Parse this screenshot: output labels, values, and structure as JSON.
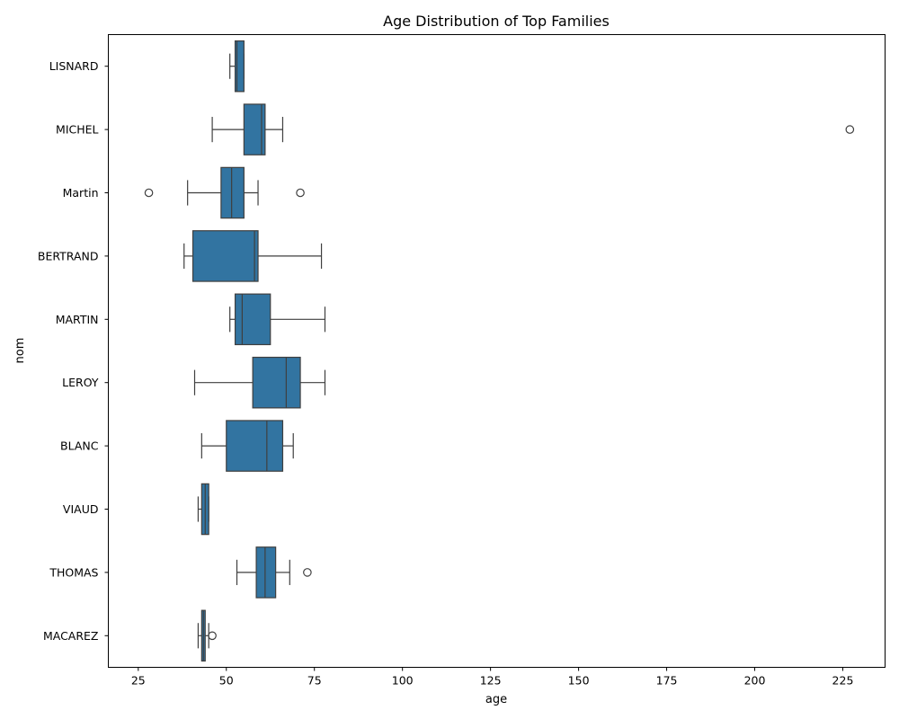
{
  "chart_data": {
    "type": "boxplot",
    "orientation": "horizontal",
    "title": "Age Distribution of Top Families",
    "xlabel": "age",
    "ylabel": "nom",
    "xlim": [
      16.5,
      237.0
    ],
    "xticks": [
      25,
      50,
      75,
      100,
      125,
      150,
      175,
      200,
      225
    ],
    "grid": false,
    "legend": "none",
    "colors": {
      "box_fill": "#3274a1",
      "line": "#3f3f3f",
      "axis": "#000000"
    },
    "categories": [
      "LISNARD",
      "MICHEL",
      "Martin",
      "BERTRAND",
      "MARTIN",
      "LEROY",
      "BLANC",
      "VIAUD",
      "THOMAS",
      "MACAREZ"
    ],
    "boxes": [
      {
        "label": "LISNARD",
        "whislo": 51,
        "q1": 52.5,
        "med": 53,
        "q3": 55,
        "whishi": 55,
        "fliers": []
      },
      {
        "label": "MICHEL",
        "whislo": 46,
        "q1": 55,
        "med": 60,
        "q3": 61,
        "whishi": 66,
        "fliers": [
          227
        ]
      },
      {
        "label": "Martin",
        "whislo": 39,
        "q1": 48.5,
        "med": 51.5,
        "q3": 55,
        "whishi": 59,
        "fliers": [
          28,
          71
        ]
      },
      {
        "label": "BERTRAND",
        "whislo": 38,
        "q1": 40.5,
        "med": 58,
        "q3": 59,
        "whishi": 77,
        "fliers": []
      },
      {
        "label": "MARTIN",
        "whislo": 51,
        "q1": 52.5,
        "med": 54.5,
        "q3": 62.5,
        "whishi": 78,
        "fliers": []
      },
      {
        "label": "LEROY",
        "whislo": 41,
        "q1": 57.5,
        "med": 67,
        "q3": 71,
        "whishi": 78,
        "fliers": []
      },
      {
        "label": "BLANC",
        "whislo": 43,
        "q1": 50,
        "med": 61.5,
        "q3": 66,
        "whishi": 69,
        "fliers": []
      },
      {
        "label": "VIAUD",
        "whislo": 42,
        "q1": 43,
        "med": 44,
        "q3": 45,
        "whishi": 45,
        "fliers": []
      },
      {
        "label": "THOMAS",
        "whislo": 53,
        "q1": 58.5,
        "med": 61,
        "q3": 64,
        "whishi": 68,
        "fliers": [
          73
        ]
      },
      {
        "label": "MACAREZ",
        "whislo": 42,
        "q1": 43,
        "med": 43.5,
        "q3": 44,
        "whishi": 45,
        "fliers": [
          46
        ]
      }
    ]
  }
}
